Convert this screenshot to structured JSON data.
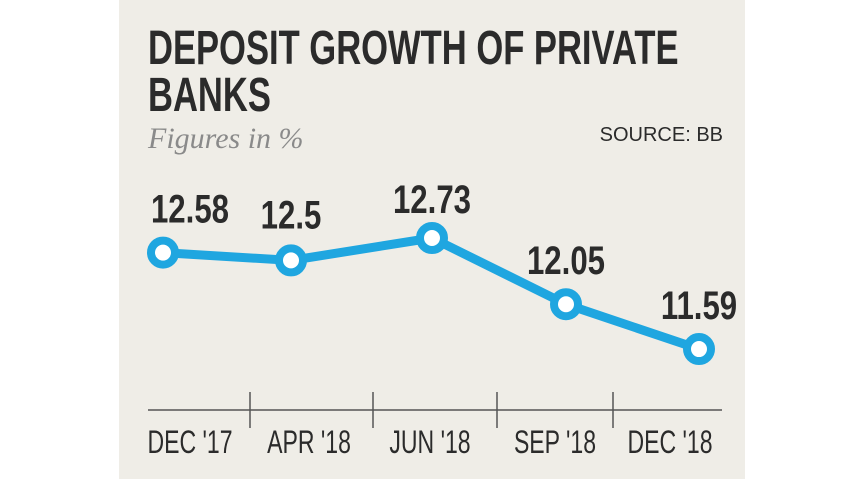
{
  "colors": {
    "background": "#efede7",
    "line": "#1fa6e0",
    "text": "#2b2b2b",
    "subtitle": "#8a8a8a"
  },
  "chart_data": {
    "type": "line",
    "title": "DEPOSIT GROWTH OF PRIVATE BANKS",
    "title_lines": [
      "DEPOSIT GROWTH OF PRIVATE",
      "BANKS"
    ],
    "subtitle": "Figures in %",
    "source": "SOURCE: BB",
    "categories": [
      "DEC '17",
      "APR '18",
      "JUN '18",
      "SEP '18",
      "DEC '18"
    ],
    "values": [
      12.58,
      12.5,
      12.73,
      12.05,
      11.59
    ],
    "data_labels": [
      "12.58",
      "12.5",
      "12.73",
      "12.05",
      "11.59"
    ],
    "grid": false,
    "legend": "none"
  }
}
